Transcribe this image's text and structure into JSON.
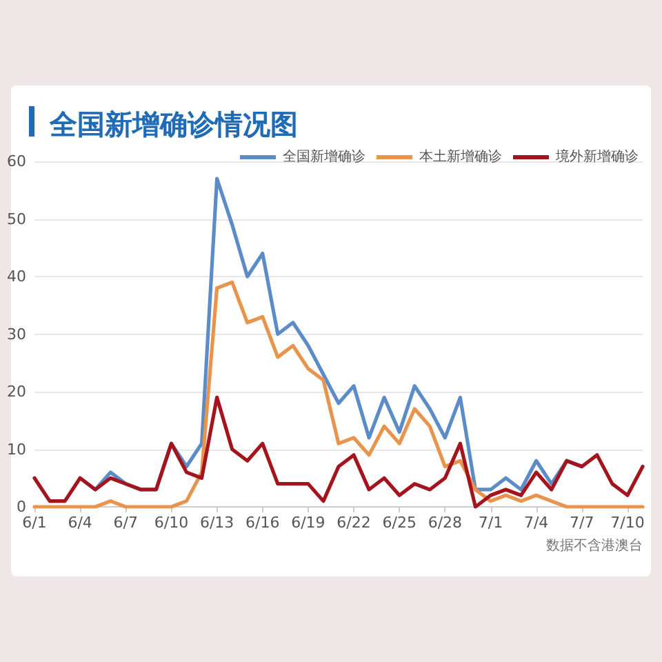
{
  "chart_data": {
    "type": "line",
    "title": "全国新增确诊情况图",
    "categories": [
      "6/1",
      null,
      null,
      "6/4",
      null,
      null,
      "6/7",
      null,
      null,
      "6/10",
      null,
      null,
      "6/13",
      null,
      null,
      "6/16",
      null,
      null,
      "6/19",
      null,
      null,
      "6/22",
      null,
      null,
      "6/25",
      null,
      null,
      "6/28",
      null,
      null,
      "7/1",
      null,
      null,
      "7/4",
      null,
      null,
      "7/7",
      null,
      null,
      "7/10",
      null
    ],
    "series": [
      {
        "name": "全国新增确诊",
        "color": "#5b8cc8",
        "values": [
          null,
          null,
          null,
          5,
          3,
          6,
          4,
          3,
          3,
          11,
          7,
          11,
          57,
          49,
          40,
          44,
          30,
          32,
          28,
          23,
          18,
          21,
          12,
          19,
          13,
          21,
          17,
          12,
          19,
          3,
          3,
          5,
          3,
          8,
          4,
          8,
          7,
          null,
          null,
          null,
          null
        ]
      },
      {
        "name": "本土新增确诊",
        "color": "#e8944c",
        "values": [
          0,
          0,
          0,
          0,
          0,
          1,
          0,
          0,
          0,
          0,
          1,
          6,
          38,
          39,
          32,
          33,
          26,
          28,
          24,
          22,
          11,
          12,
          9,
          14,
          11,
          17,
          14,
          7,
          8,
          3,
          1,
          2,
          1,
          2,
          1,
          0,
          0,
          0,
          0,
          0,
          0
        ]
      },
      {
        "name": "境外新增确诊",
        "color": "#a3141c",
        "values": [
          5,
          1,
          1,
          5,
          3,
          5,
          4,
          3,
          3,
          11,
          6,
          5,
          19,
          10,
          8,
          11,
          4,
          4,
          4,
          1,
          7,
          9,
          3,
          5,
          2,
          4,
          3,
          5,
          11,
          0,
          2,
          3,
          2,
          6,
          3,
          8,
          7,
          9,
          4,
          2,
          7
        ]
      }
    ],
    "ylim": [
      0,
      60
    ],
    "yticks": [
      0,
      10,
      20,
      30,
      40,
      50,
      60
    ],
    "grid": "y",
    "legend": "top right",
    "marker": "none",
    "line_style": "solid",
    "annotations": [
      "数据不含港澳台"
    ]
  }
}
